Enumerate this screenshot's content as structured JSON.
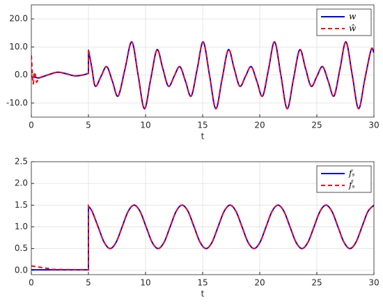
{
  "chart_data": [
    {
      "type": "line",
      "xlabel": "t",
      "x": [
        0,
        0.15,
        0.3,
        0.45,
        0.7,
        1.5,
        2.3,
        3.1,
        3.8,
        4.5,
        5.0,
        5.0,
        5.3,
        5.6,
        6.1,
        6.6,
        7.1,
        7.6,
        8.2,
        8.8,
        9.35,
        9.9,
        10.45,
        11.0,
        11.5,
        12.0,
        12.5,
        13.0,
        13.5,
        14.0,
        14.525,
        15.05,
        15.6,
        16.15,
        16.7,
        17.25,
        17.75,
        18.25,
        18.75,
        19.25,
        19.75,
        20.25,
        20.775,
        21.3,
        21.85,
        22.4,
        22.95,
        23.5,
        24.0,
        24.5,
        25.0,
        25.5,
        26.0,
        26.5,
        27.025,
        27.55,
        28.1,
        28.65,
        29.2,
        29.75,
        30
      ],
      "series": [
        {
          "name": "w",
          "color": "#0000ff",
          "dash": false,
          "values": [
            -0.5,
            -0.7,
            -0.8,
            -0.9,
            -1.0,
            0.1,
            1.0,
            0.4,
            -0.3,
            0.0,
            0.6,
            9,
            2.5,
            -4,
            -0.5,
            3,
            -2.25,
            -7.5,
            2.15,
            11.8,
            0,
            -12,
            -1.5,
            9,
            2.5,
            -4,
            -0.5,
            3,
            -2.25,
            -7.5,
            2.15,
            11.8,
            0,
            -12,
            -1.5,
            9,
            2.5,
            -4,
            -0.5,
            3,
            -2.25,
            -7.5,
            2.15,
            11.8,
            0,
            -12,
            -1.5,
            9,
            2.5,
            -4,
            -0.5,
            3,
            -2.25,
            -7.5,
            2.15,
            11.8,
            0,
            -12,
            -1.5,
            9,
            8
          ]
        },
        {
          "name": "ŵ",
          "color": "#ff0000",
          "dash": true,
          "values": [
            7,
            -3,
            1,
            -2.5,
            -1.0,
            0.1,
            1.0,
            0.4,
            -0.3,
            0.0,
            0.6,
            9,
            2.5,
            -4,
            -0.5,
            3,
            -2.25,
            -7.5,
            2.15,
            11.8,
            0,
            -12,
            -1.5,
            9,
            2.5,
            -4,
            -0.5,
            3,
            -2.25,
            -7.5,
            2.15,
            11.8,
            0,
            -12,
            -1.5,
            9,
            2.5,
            -4,
            -0.5,
            3,
            -2.25,
            -7.5,
            2.15,
            11.8,
            0,
            -12,
            -1.5,
            9,
            2.5,
            -4,
            -0.5,
            3,
            -2.25,
            -7.5,
            2.15,
            11.8,
            0,
            -12,
            -1.5,
            9,
            8
          ]
        }
      ],
      "xlim": [
        0,
        30
      ],
      "xticks": [
        0,
        5,
        10,
        15,
        20,
        25,
        30
      ],
      "ylim": [
        -15,
        25
      ],
      "yticks": [
        {
          "value": -10,
          "label": "-10.0"
        },
        {
          "value": 0,
          "label": "0.0"
        },
        {
          "value": 10,
          "label": "10.0"
        },
        {
          "value": 20,
          "label": "20.0"
        }
      ],
      "grid": true,
      "legend": "upper right"
    },
    {
      "type": "line",
      "xlabel": "t",
      "x": [
        0,
        0.5,
        1,
        1.5,
        2,
        5,
        5,
        5.325,
        5.85,
        6.375,
        6.9,
        7.425,
        7.95,
        8.475,
        9.0,
        9.525,
        10.05,
        10.575,
        11.1,
        11.625,
        12.15,
        12.675,
        13.2,
        13.725,
        14.25,
        14.775,
        15.3,
        15.825,
        16.35,
        16.875,
        17.4,
        17.925,
        18.45,
        18.975,
        19.5,
        20.025,
        20.55,
        21.075,
        21.6,
        22.125,
        22.65,
        23.175,
        23.7,
        24.225,
        24.75,
        25.275,
        25.8,
        26.325,
        26.85,
        27.375,
        27.9,
        28.425,
        28.95,
        29.475,
        30
      ],
      "series": [
        {
          "name": "fₛ",
          "color": "#0000ff",
          "dash": false,
          "values": [
            0.01,
            0.01,
            0.01,
            0.01,
            0.01,
            0.01,
            1.478,
            1.354,
            1,
            0.646,
            0.5,
            0.646,
            1,
            1.354,
            1.5,
            1.354,
            1,
            0.646,
            0.5,
            0.646,
            1,
            1.354,
            1.5,
            1.354,
            1,
            0.646,
            0.5,
            0.646,
            1,
            1.354,
            1.5,
            1.354,
            1,
            0.646,
            0.5,
            0.646,
            1,
            1.354,
            1.5,
            1.354,
            1,
            0.646,
            0.5,
            0.646,
            1,
            1.354,
            1.5,
            1.354,
            1,
            0.646,
            0.5,
            0.646,
            1,
            1.354,
            1.5
          ]
        },
        {
          "name": "f̂ₛ",
          "color": "#ff0000",
          "dash": true,
          "values": [
            0.1,
            0.08,
            0.06,
            0.04,
            0.02,
            0.01,
            1.478,
            1.354,
            1,
            0.646,
            0.5,
            0.646,
            1,
            1.354,
            1.5,
            1.354,
            1,
            0.646,
            0.5,
            0.646,
            1,
            1.354,
            1.5,
            1.354,
            1,
            0.646,
            0.5,
            0.646,
            1,
            1.354,
            1.5,
            1.354,
            1,
            0.646,
            0.5,
            0.646,
            1,
            1.354,
            1.5,
            1.354,
            1,
            0.646,
            0.5,
            0.646,
            1,
            1.354,
            1.5,
            1.354,
            1,
            0.646,
            0.5,
            0.646,
            1,
            1.354,
            1.5
          ]
        }
      ],
      "xlim": [
        0,
        30
      ],
      "xticks": [
        0,
        5,
        10,
        15,
        20,
        25,
        30
      ],
      "ylim": [
        -0.1,
        2.5
      ],
      "yticks": [
        {
          "value": 0,
          "label": "0.0"
        },
        0.5,
        {
          "value": 1,
          "label": "1.0"
        },
        1.5,
        {
          "value": 2,
          "label": "2.0"
        },
        2.5
      ],
      "grid": true,
      "legend": "upper right"
    }
  ]
}
